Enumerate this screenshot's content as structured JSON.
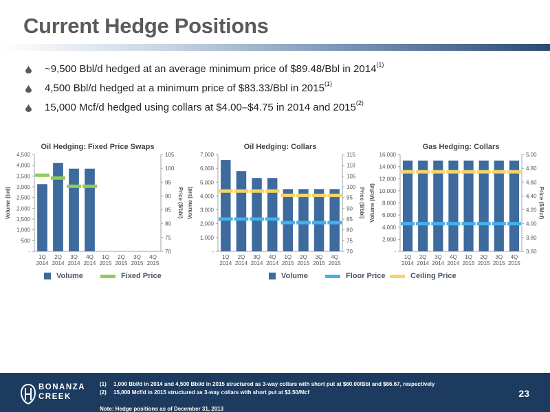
{
  "header": {
    "title": "Current Hedge Positions"
  },
  "colors": {
    "bar": "#3e6a9d",
    "fixed_price": "#8dcf52",
    "floor_price": "#43b1ec",
    "ceiling_price": "#f6d465",
    "axis": "#9aa4ae",
    "footer": "#1d3b5e",
    "bullet": "#5a5a5a"
  },
  "bullets": [
    {
      "icon": "oil-drop-icon",
      "text": "~9,500 Bbl/d hedged at an average minimum price of $89.48/Bbl in 2014",
      "note": "(1)"
    },
    {
      "icon": "oil-drop-icon",
      "text": "4,500 Bbl/d hedged at a minimum price of $83.33/Bbl in 2015",
      "note": "(1)"
    },
    {
      "icon": "oil-drop-icon",
      "text": "15,000 Mcf/d hedged using collars at $4.00–$4.75 in 2014 and 2015",
      "note": "(2)"
    }
  ],
  "chart_data": [
    {
      "type": "bar",
      "title": "Oil Hedging: Fixed Price Swaps",
      "categories": [
        "1Q 2014",
        "2Q 2014",
        "3Q 2014",
        "4Q 2014",
        "1Q 2015",
        "2Q 2015",
        "3Q 2015",
        "4Q 2015"
      ],
      "ylabel": "Volume (b/d)",
      "y2label": "Price ($/bbl)",
      "ylim": [
        0,
        4500
      ],
      "yticks": [
        "-",
        "500",
        "1,000",
        "1,500",
        "2,000",
        "2,500",
        "3,000",
        "3,500",
        "4,000",
        "4,500"
      ],
      "y2lim": [
        70,
        105
      ],
      "y2ticks": [
        "70",
        "75",
        "80",
        "85",
        "90",
        "95",
        "100",
        "105"
      ],
      "series": [
        {
          "name": "Volume",
          "kind": "bar",
          "axis": "left",
          "values": [
            3120,
            4110,
            3840,
            3840,
            0,
            0,
            0,
            0
          ]
        },
        {
          "name": "Fixed Price",
          "kind": "marker",
          "axis": "right",
          "values": [
            97.5,
            96.5,
            93.5,
            93.5,
            null,
            null,
            null,
            null
          ]
        }
      ]
    },
    {
      "type": "bar",
      "title": "Oil Hedging: Collars",
      "categories": [
        "1Q 2014",
        "2Q 2014",
        "3Q 2014",
        "4Q 2014",
        "1Q 2015",
        "2Q 2015",
        "3Q 2015",
        "4Q 2015"
      ],
      "ylabel": "Volume (b/d)",
      "y2label": "Price ($/bbl)",
      "ylim": [
        0,
        7000
      ],
      "yticks": [
        "-",
        "1,000",
        "2,000",
        "3,000",
        "4,000",
        "5,000",
        "6,000",
        "7,000"
      ],
      "y2lim": [
        70,
        115
      ],
      "y2ticks": [
        "70",
        "75",
        "80",
        "85",
        "90",
        "95",
        "100",
        "105",
        "110",
        "115"
      ],
      "series": [
        {
          "name": "Volume",
          "kind": "bar",
          "axis": "left",
          "values": [
            6600,
            5800,
            5300,
            5300,
            4500,
            4500,
            4500,
            4500
          ]
        },
        {
          "name": "Floor Price",
          "kind": "marker",
          "axis": "right",
          "values": [
            85,
            85,
            85,
            85,
            83.33,
            83.33,
            83.33,
            83.33
          ]
        },
        {
          "name": "Ceiling Price",
          "kind": "marker",
          "axis": "right",
          "values": [
            98,
            98,
            98,
            98,
            96,
            96,
            96,
            96
          ]
        }
      ]
    },
    {
      "type": "bar",
      "title": "Gas Hedging: Collars",
      "categories": [
        "1Q 2014",
        "2Q 2014",
        "3Q 2014",
        "4Q 2014",
        "1Q 2015",
        "2Q 2015",
        "3Q 2015",
        "4Q 2015"
      ],
      "ylabel": "Volume (Mcf/d)",
      "y2label": "Price ($/Mcf)",
      "ylim": [
        0,
        16000
      ],
      "yticks": [
        "-",
        "2,000",
        "4,000",
        "6,000",
        "8,000",
        "10,000",
        "12,000",
        "14,000",
        "16,000"
      ],
      "y2lim": [
        3.6,
        5.0
      ],
      "y2ticks": [
        "3.60",
        "3.80",
        "4.00",
        "4.20",
        "4.40",
        "4.60",
        "4.80",
        "5.00"
      ],
      "series": [
        {
          "name": "Volume",
          "kind": "bar",
          "axis": "left",
          "values": [
            15000,
            15000,
            15000,
            15000,
            15000,
            15000,
            15000,
            15000
          ]
        },
        {
          "name": "Floor Price",
          "kind": "marker",
          "axis": "right",
          "values": [
            4.0,
            4.0,
            4.0,
            4.0,
            4.0,
            4.0,
            4.0,
            4.0
          ]
        },
        {
          "name": "Ceiling Price",
          "kind": "marker",
          "axis": "right",
          "values": [
            4.75,
            4.75,
            4.75,
            4.75,
            4.75,
            4.75,
            4.75,
            4.75
          ]
        }
      ]
    }
  ],
  "footer": {
    "logo_text": [
      "BONANZA",
      "CREEK"
    ],
    "notes": [
      {
        "num": "(1)",
        "text": "1,000 Bbl/d in 2014 and 4,500 Bbl/d in 2015 structured as 3-way collars with short put at $60.00/Bbl and $66.67, respectively"
      },
      {
        "num": "(2)",
        "text": "15,000 Mcf/d in 2015 structured as 3-way collars with short put at $3.50/Mcf"
      }
    ],
    "date_note": "Note: Hedge positions as of December 31, 2013",
    "page_number": "23"
  }
}
